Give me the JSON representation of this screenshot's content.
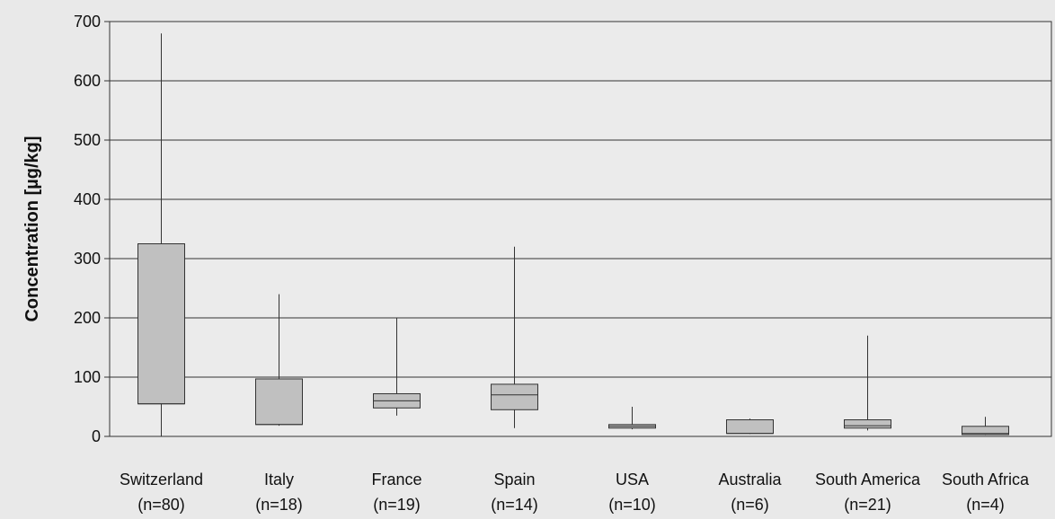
{
  "chart_data": {
    "type": "box",
    "title": "",
    "xlabel": "",
    "ylabel": "Concentration [µg/kg]",
    "ylim": [
      0,
      700
    ],
    "yticks": [
      0,
      100,
      200,
      300,
      400,
      500,
      600,
      700
    ],
    "grid": true,
    "categories": [
      "Switzerland",
      "Italy",
      "France",
      "Spain",
      "USA",
      "Australia",
      "South America",
      "South Africa"
    ],
    "sample_sizes": [
      "(n=80)",
      "(n=18)",
      "(n=19)",
      "(n=14)",
      "(n=10)",
      "(n=6)",
      "(n=21)",
      "(n=4)"
    ],
    "boxes": [
      {
        "min": 0,
        "q1": 55,
        "median": 55,
        "q3": 325,
        "max": 680
      },
      {
        "min": 18,
        "q1": 20,
        "median": 20,
        "q3": 97,
        "max": 240
      },
      {
        "min": 35,
        "q1": 48,
        "median": 60,
        "q3": 72,
        "max": 200
      },
      {
        "min": 14,
        "q1": 45,
        "median": 70,
        "q3": 88,
        "max": 320
      },
      {
        "min": 12,
        "q1": 14,
        "median": 17,
        "q3": 20,
        "max": 50
      },
      {
        "min": 4,
        "q1": 5,
        "median": 5,
        "q3": 28,
        "max": 30
      },
      {
        "min": 10,
        "q1": 14,
        "median": 18,
        "q3": 28,
        "max": 170
      },
      {
        "min": 2,
        "q1": 3,
        "median": 5,
        "q3": 17,
        "max": 33
      }
    ],
    "box_color": "#c0c0c0",
    "line_color": "#333333"
  }
}
